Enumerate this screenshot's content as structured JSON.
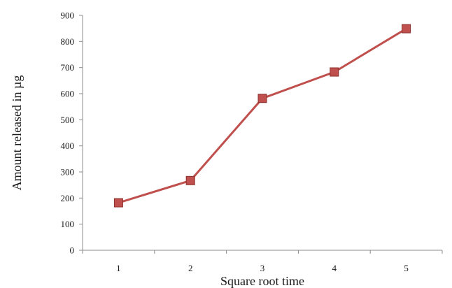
{
  "chart_data": {
    "type": "line",
    "title": "",
    "xlabel": "Square root time",
    "ylabel": "Amount released in µg",
    "categories": [
      "1",
      "2",
      "3",
      "4",
      "5"
    ],
    "series": [
      {
        "values": [
          182,
          267,
          582,
          683,
          849
        ],
        "color": "#c0504d",
        "marker": "square"
      }
    ],
    "ylim": [
      0,
      900
    ],
    "yticks": [
      0,
      100,
      200,
      300,
      400,
      500,
      600,
      700,
      800,
      900
    ],
    "grid": false,
    "legend": "none"
  }
}
